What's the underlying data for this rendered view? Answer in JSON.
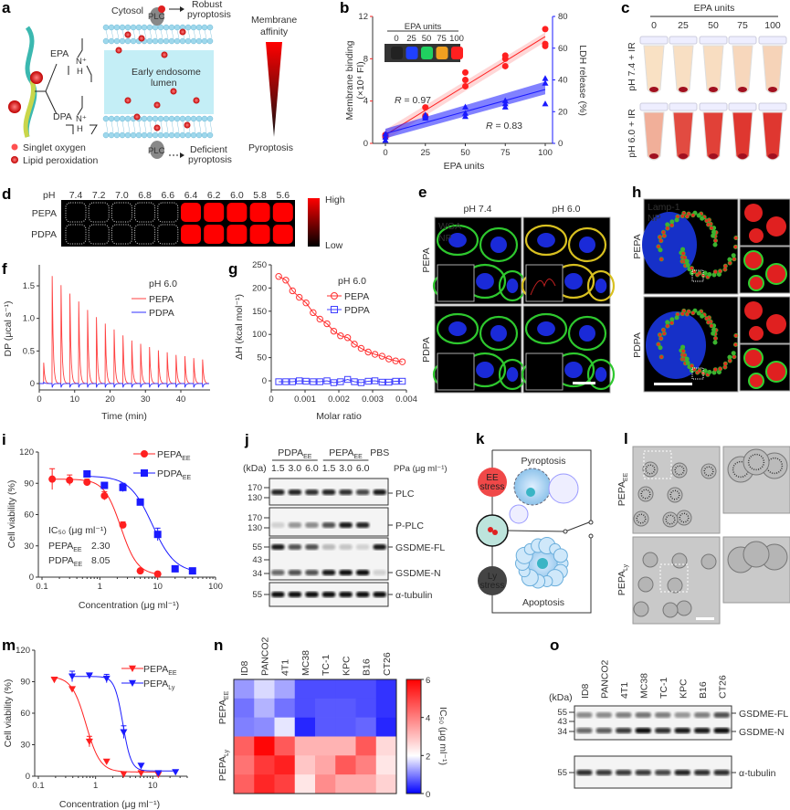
{
  "panels": {
    "a": {
      "label": "a",
      "cytosol": "Cytosol",
      "plc_top": "PLC",
      "plc_bottom": "PLC",
      "robust": [
        "Robust",
        "pyroptosis"
      ],
      "deficient": [
        "Deficient",
        "pyroptosis"
      ],
      "lumen": [
        "Early endosome",
        "lumen"
      ],
      "epa": "EPA",
      "dpa": "DPA",
      "n_plus": "N⁺",
      "h": "H",
      "affinity": [
        "Membrane",
        "affinity"
      ],
      "pyroptosis": "Pyroptosis",
      "legend": [
        "Singlet oxygen",
        "Lipid peroxidation"
      ]
    },
    "b": {
      "label": "b"
    },
    "c": {
      "label": "c",
      "title": "EPA units",
      "columns": [
        "0",
        "25",
        "50",
        "75",
        "100"
      ],
      "rows": [
        "pH 7.4 + IR",
        "pH 6.0 + IR"
      ],
      "redness": [
        [
          0.05,
          0.06,
          0.07,
          0.1,
          0.12
        ],
        [
          0.3,
          0.8,
          0.85,
          0.9,
          0.9
        ]
      ]
    },
    "d": {
      "label": "d",
      "ph_label": "pH",
      "ph": [
        "7.4",
        "7.2",
        "7.0",
        "6.8",
        "6.6",
        "6.4",
        "6.2",
        "6.0",
        "5.8",
        "5.6"
      ],
      "rows": [
        {
          "name": "PEPA",
          "signal": [
            0,
            0,
            0,
            0,
            0,
            1,
            1,
            1,
            1,
            1
          ]
        },
        {
          "name": "PDPA",
          "signal": [
            0,
            0,
            0,
            0,
            0,
            1,
            1,
            1,
            1,
            1
          ]
        }
      ],
      "scale_high": "High",
      "scale_low": "Low",
      "color": "#ff0000"
    },
    "e": {
      "label": "e",
      "cols": [
        "pH 7.4",
        "pH 6.0"
      ],
      "rows": [
        "PEPA",
        "PDPA"
      ],
      "ch1": "WGA",
      "ch2": "NP"
    },
    "h": {
      "label": "h",
      "rows": [
        "PEPA",
        "PDPA"
      ],
      "ch1": "Lamp-1",
      "ch2": "NP"
    },
    "j": {
      "label": "j",
      "groups": [
        {
          "base": "PDPA",
          "sub": "EE"
        },
        {
          "base": "PEPA",
          "sub": "EE"
        },
        {
          "base": "PBS",
          "sub": ""
        }
      ],
      "kda": "(kDa)",
      "doses": [
        "1.5",
        "3.0",
        "6.0",
        "1.5",
        "3.0",
        "6.0"
      ],
      "dose_unit": "PPa (μg ml⁻¹)",
      "blots": [
        {
          "name": "PLC",
          "markers": [
            "170",
            "130"
          ],
          "bands": [
            [
              0.9,
              0.9,
              0.85,
              0.9,
              0.85,
              0.75,
              0.95
            ]
          ]
        },
        {
          "name": "P-PLC",
          "markers": [
            "170",
            "130"
          ],
          "bands": [
            [
              0.15,
              0.4,
              0.45,
              0.7,
              0.95,
              0.9,
              0
            ]
          ]
        },
        {
          "name": "GSDME-FL",
          "markers": [
            "55",
            "43"
          ],
          "bands": [
            [
              0.95,
              0.7,
              0.7,
              0.25,
              0.2,
              0.15,
              0.95
            ]
          ]
        },
        {
          "name": "GSDME-N",
          "markers": [
            "34"
          ],
          "bands": [
            [
              0.6,
              0.7,
              0.7,
              0.95,
              1,
              1,
              0.15
            ]
          ]
        },
        {
          "name": "α-tubulin",
          "markers": [
            "55"
          ],
          "bands": [
            [
              1,
              1,
              1,
              1,
              1,
              1,
              1
            ]
          ]
        }
      ]
    },
    "k": {
      "label": "k",
      "top": "Pyroptosis",
      "bottom": "Apoptosis",
      "ee": [
        "EE",
        "stress"
      ],
      "ly": [
        "Ly",
        "stress"
      ]
    },
    "l": {
      "label": "l",
      "rows": [
        {
          "base": "PEPA",
          "sub": "EE"
        },
        {
          "base": "PEPA",
          "sub": "Ly"
        }
      ]
    },
    "n": {
      "label": "n"
    },
    "o": {
      "label": "o",
      "kda": "(kDa)",
      "lanes": [
        "ID8",
        "PANCO2",
        "4T1",
        "MC38",
        "TC-1",
        "KPC",
        "B16",
        "CT26"
      ],
      "blots": [
        {
          "labels": [
            "GSDME-FL",
            "GSDME-N"
          ],
          "markers": [
            "55",
            "43",
            "34"
          ],
          "bands": [
            [
              0.45,
              0.45,
              0.5,
              0.55,
              0.5,
              0.4,
              0.5,
              0.7
            ],
            [
              0.6,
              0.65,
              0.8,
              1,
              0.85,
              0.95,
              0.95,
              1
            ]
          ]
        },
        {
          "labels": [
            "α-tubulin"
          ],
          "markers": [
            "55"
          ],
          "bands": [
            [
              0.85,
              0.8,
              0.8,
              0.8,
              0.75,
              0.9,
              0.85,
              0.85
            ]
          ]
        }
      ]
    }
  },
  "chart_data": [
    {
      "panel": "b",
      "type": "scatter",
      "x_label": "EPA units",
      "y_label": "Membrane binding",
      "y_label_2": "(×10⁴ FI)",
      "y2_label": "LDH release (%)",
      "xlim": [
        0,
        100
      ],
      "ylim": [
        0,
        12
      ],
      "y2lim": [
        0,
        80
      ],
      "x_ticks": [
        "0",
        "25",
        "50",
        "75",
        "100"
      ],
      "y_ticks": [
        "0",
        "4",
        "8",
        "12"
      ],
      "y2_ticks": [
        "0",
        "20",
        "40",
        "60",
        "80"
      ],
      "inset": {
        "title": "EPA units",
        "labels": [
          "0",
          "25",
          "50",
          "75",
          "100"
        ],
        "colors": [
          "#222222",
          "#2040ff",
          "#20d060",
          "#f0a020",
          "#ff2020"
        ]
      },
      "series": [
        {
          "axis": "left",
          "color": "#ff2020",
          "marker": "circle",
          "x": [
            0,
            0,
            0,
            25,
            25,
            25,
            50,
            50,
            50,
            75,
            75,
            75,
            100,
            100,
            100
          ],
          "y": [
            0.6,
            0.8,
            0.7,
            3.4,
            2.6,
            2.5,
            6.7,
            6.0,
            5.4,
            8.3,
            8.0,
            7.3,
            10.8,
            9.4,
            9.2
          ],
          "r_symbol": "R",
          "r_value": " = 0.97"
        },
        {
          "axis": "right",
          "color": "#1a1aff",
          "marker": "triangle",
          "x": [
            0,
            0,
            0,
            25,
            25,
            25,
            50,
            50,
            50,
            75,
            75,
            75,
            100,
            100,
            100
          ],
          "y": [
            2,
            4,
            6,
            17,
            18,
            16,
            23,
            19,
            17,
            27,
            25,
            23,
            41,
            38,
            25
          ],
          "r_symbol": "R",
          "r_value": " = 0.83"
        }
      ]
    },
    {
      "panel": "f",
      "type": "line",
      "x_label": "Time (min)",
      "y_label": "DP (μcal s⁻¹)",
      "xlim": [
        0,
        48
      ],
      "ylim": [
        -0.1,
        1.75
      ],
      "x_ticks": [
        "0",
        "10",
        "20",
        "30",
        "40"
      ],
      "y_ticks": [
        "0",
        "0.5",
        "1.0",
        "1.5"
      ],
      "legend_title": "pH 6.0",
      "series": [
        {
          "name": "PEPA",
          "color": "#ff4040",
          "injection_times": [
            1.2,
            3.6,
            6.1,
            8.6,
            11.1,
            13.6,
            16.1,
            18.6,
            21.1,
            23.6,
            26.1,
            28.6,
            31.1,
            33.6,
            36.1,
            38.6,
            41.1,
            43.6,
            46.1
          ],
          "peaks": [
            0.32,
            1.65,
            1.51,
            1.38,
            1.26,
            1.13,
            1.02,
            0.92,
            0.83,
            0.74,
            0.66,
            0.61,
            0.56,
            0.51,
            0.48,
            0.44,
            0.42,
            0.39,
            0.37
          ]
        },
        {
          "name": "PDPA",
          "color": "#3030ff",
          "injection_times": [
            1.2,
            3.6,
            6.1,
            8.6,
            11.1,
            13.6,
            16.1,
            18.6,
            21.1,
            23.6,
            26.1,
            28.6,
            31.1,
            33.6,
            36.1,
            38.6,
            41.1,
            43.6,
            46.1
          ],
          "peaks": [
            0.02,
            -0.06,
            -0.06,
            -0.06,
            -0.06,
            -0.06,
            -0.06,
            -0.06,
            -0.06,
            -0.06,
            -0.06,
            -0.06,
            -0.06,
            -0.06,
            -0.06,
            -0.06,
            -0.06,
            -0.06,
            -0.06
          ]
        }
      ]
    },
    {
      "panel": "g",
      "type": "scatter",
      "x_label": "Molar ratio",
      "y_label": "ΔH (kcal mol⁻¹)",
      "xlim": [
        0,
        0.004
      ],
      "ylim": [
        -15,
        250
      ],
      "x_ticks": [
        "0",
        "0.001",
        "0.002",
        "0.003",
        "0.004"
      ],
      "y_ticks": [
        "0",
        "50",
        "100",
        "150",
        "200",
        "250"
      ],
      "legend_title": "pH 6.0",
      "series": [
        {
          "name": "PEPA",
          "color": "#ff3030",
          "marker": "open-circle",
          "x": [
            0.00022,
            0.00043,
            0.00063,
            0.00083,
            0.00103,
            0.00124,
            0.00144,
            0.00165,
            0.00185,
            0.00205,
            0.00226,
            0.00246,
            0.00266,
            0.00287,
            0.00307,
            0.00328,
            0.00348,
            0.00368,
            0.00388
          ],
          "y": [
            225,
            217,
            194,
            180,
            168,
            147,
            133,
            123,
            107,
            97,
            93,
            79,
            70,
            62,
            57,
            53,
            47,
            43,
            41
          ]
        },
        {
          "name": "PDPA",
          "color": "#4040ff",
          "marker": "open-square",
          "x": [
            0.00022,
            0.00043,
            0.00063,
            0.00083,
            0.00103,
            0.00124,
            0.00144,
            0.00165,
            0.00185,
            0.00205,
            0.00226,
            0.00246,
            0.00266,
            0.00287,
            0.00307,
            0.00328,
            0.00348,
            0.00368,
            0.00388
          ],
          "y": [
            -2,
            -2,
            -2,
            0,
            -1,
            -2,
            -2,
            0,
            -4,
            -2,
            3,
            -2,
            -4,
            -1,
            0,
            -3,
            -3,
            -1,
            -1
          ]
        }
      ]
    },
    {
      "panel": "i",
      "type": "scatter",
      "x_scale": "log",
      "x_label": "Concentration (μg ml⁻¹)",
      "y_label": "Cell viability (%)",
      "xlim": [
        0.1,
        100
      ],
      "ylim": [
        0,
        120
      ],
      "x_ticks": [
        "0.1",
        "1",
        "10",
        "100"
      ],
      "y_ticks": [
        "0",
        "30",
        "60",
        "90",
        "120"
      ],
      "ic50_title": "IC₅₀ (μg ml⁻¹)",
      "series": [
        {
          "name": {
            "base": "PEPA",
            "sub": "EE"
          },
          "color": "#ff2020",
          "marker": "circle",
          "x": [
            0.15,
            0.3,
            0.6,
            1.2,
            2.5,
            5,
            10
          ],
          "y": [
            94,
            93,
            91,
            78,
            50,
            6,
            3
          ],
          "err": [
            10,
            5,
            3,
            4,
            3,
            1,
            1
          ],
          "ic50": "2.30"
        },
        {
          "name": {
            "base": "PDPA",
            "sub": "EE"
          },
          "color": "#1a1aff",
          "marker": "square",
          "x": [
            0.6,
            1.2,
            2.5,
            5,
            10,
            20,
            40
          ],
          "y": [
            99,
            88,
            86,
            72,
            41,
            8,
            6
          ],
          "err": [
            1,
            2,
            4,
            3,
            6,
            1,
            1
          ],
          "ic50": "8.05"
        }
      ]
    },
    {
      "panel": "m",
      "type": "scatter",
      "x_scale": "log",
      "x_label": "Concentration (μg ml⁻¹)",
      "y_label": "Cell viability (%)",
      "xlim": [
        0.1,
        40
      ],
      "ylim": [
        0,
        120
      ],
      "x_ticks": [
        "0.1",
        "1",
        "10"
      ],
      "y_ticks": [
        "0",
        "30",
        "60",
        "90",
        "120"
      ],
      "series": [
        {
          "name": {
            "base": "PEPA",
            "sub": "EE"
          },
          "color": "#ff2020",
          "marker": "triangle-down",
          "x": [
            0.19,
            0.39,
            0.78,
            1.56,
            3.1,
            6.25,
            12.5
          ],
          "y": [
            92,
            83,
            33,
            14,
            2,
            3,
            1.5
          ],
          "err": [
            1,
            2,
            5,
            0,
            0,
            0,
            0
          ]
        },
        {
          "name": {
            "base": "PEPA",
            "sub": "Ly"
          },
          "color": "#1a1aff",
          "marker": "triangle-down",
          "x": [
            0.39,
            0.78,
            1.56,
            3.1,
            6.25,
            12.5,
            25
          ],
          "y": [
            95,
            96,
            93,
            42,
            10,
            3,
            4
          ],
          "err": [
            5,
            1,
            4,
            6,
            0,
            0,
            0
          ]
        }
      ]
    },
    {
      "panel": "n",
      "type": "heatmap",
      "columns": [
        "ID8",
        "PANCO2",
        "4T1",
        "MC38",
        "TC-1",
        "KPC",
        "B16",
        "CT26"
      ],
      "row_groups": [
        {
          "base": "PEPA",
          "sub": "EE"
        },
        {
          "base": "PEPA",
          "sub": "Ly"
        }
      ],
      "values": [
        [
          1.2,
          1.7,
          1.3,
          0.6,
          0.6,
          0.6,
          0.6,
          0.4
        ],
        [
          0.9,
          1.4,
          0.9,
          0.6,
          0.7,
          0.7,
          0.6,
          0.4
        ],
        [
          1.0,
          1.1,
          1.8,
          0.3,
          0.7,
          0.7,
          0.8,
          0.3
        ],
        [
          4.5,
          5.9,
          4.6,
          3.2,
          3.2,
          3.2,
          4.6,
          2.6
        ],
        [
          4.2,
          5.1,
          5.5,
          2.9,
          3.4,
          4.6,
          4.0,
          2.4
        ],
        [
          4.5,
          5.4,
          5.0,
          2.4,
          3.8,
          3.3,
          3.3,
          2.7
        ]
      ],
      "colorbar_label": "IC₅₀ (μg ml⁻¹)",
      "colorbar_ticks": [
        "0",
        "2",
        "4",
        "6"
      ],
      "vmin": 0,
      "vcenter": 2,
      "vmax": 6,
      "colors": {
        "low": "#0000ff",
        "mid": "#ffffff",
        "high": "#ff0000"
      }
    }
  ]
}
